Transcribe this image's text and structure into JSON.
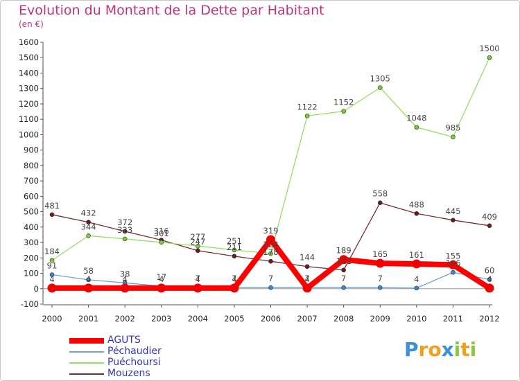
{
  "chart_data": {
    "type": "line",
    "title": "Evolution du Montant de la Dette par Habitant",
    "subtitle": "(en €)",
    "xlabel": "",
    "ylabel": "",
    "x": [
      "2000",
      "2001",
      "2002",
      "2003",
      "2004",
      "2005",
      "2006",
      "2007",
      "2008",
      "2009",
      "2010",
      "2011",
      "2012"
    ],
    "ylim": [
      -100,
      1600
    ],
    "yticks": [
      -100,
      0,
      100,
      200,
      300,
      400,
      500,
      600,
      700,
      800,
      900,
      1000,
      1100,
      1200,
      1300,
      1400,
      1500,
      1600
    ],
    "grid": false,
    "legend_position": "bottom-left",
    "series": [
      {
        "name": "AGUTS",
        "color": "#ff0000",
        "marker_color": "#ee0000",
        "values": [
          4,
          4,
          4,
          4,
          4,
          4,
          319,
          4,
          189,
          165,
          161,
          155,
          4
        ],
        "labels": [
          "4",
          "4",
          "4",
          "4",
          "4",
          "4",
          "319",
          "4",
          "189",
          "165",
          "161",
          "155",
          "4"
        ]
      },
      {
        "name": "Péchaudier",
        "color": "#6fa3d3",
        "marker_color": "#3a86c8",
        "values": [
          91,
          58,
          38,
          17,
          7,
          7,
          7,
          7,
          7,
          7,
          4,
          106,
          60
        ],
        "labels": [
          "91",
          "58",
          "38",
          "17",
          "7",
          "7",
          "7",
          "7",
          "7",
          "7",
          "4",
          "106",
          "60"
        ]
      },
      {
        "name": "Puéchoursi",
        "color": "#99dd66",
        "marker_color": "#77cc33",
        "values": [
          184,
          344,
          323,
          301,
          277,
          251,
          228,
          1122,
          1152,
          1305,
          1048,
          985,
          1500
        ],
        "labels": [
          "184",
          "344",
          "323",
          "301",
          "277",
          "251",
          "228",
          "1122",
          "1152",
          "1305",
          "1048",
          "985",
          "1500"
        ]
      },
      {
        "name": "Mouzens",
        "color": "#7a2a2a",
        "marker_color": "#6b1a1a",
        "values": [
          481,
          432,
          372,
          316,
          247,
          211,
          178,
          144,
          121,
          558,
          488,
          445,
          409
        ],
        "labels": [
          "481",
          "432",
          "372",
          "316",
          "247",
          "211",
          "178",
          "144",
          "121",
          "558",
          "488",
          "445",
          "409"
        ]
      }
    ]
  },
  "legend": {
    "items": [
      {
        "label": "AGUTS",
        "color": "#ff0000",
        "text_color": "#3333cc"
      },
      {
        "label": "Péchaudier",
        "color": "#6fa3d3",
        "text_color": "#3333cc"
      },
      {
        "label": "Puéchoursi",
        "color": "#99dd66",
        "text_color": "#3333cc"
      },
      {
        "label": "Mouzens",
        "color": "#7a2a2a",
        "text_color": "#3333cc"
      }
    ]
  },
  "logo": {
    "text": "Proxiti",
    "letters": [
      {
        "ch": "P",
        "color": "#3a8fd6"
      },
      {
        "ch": "r",
        "color": "#f0a020"
      },
      {
        "ch": "o",
        "color": "#f0a020"
      },
      {
        "ch": "x",
        "color": "#3a8fd6"
      },
      {
        "ch": "i",
        "color": "#8cc63f"
      },
      {
        "ch": "t",
        "color": "#f0a020"
      },
      {
        "ch": "i",
        "color": "#8cc63f"
      }
    ]
  }
}
